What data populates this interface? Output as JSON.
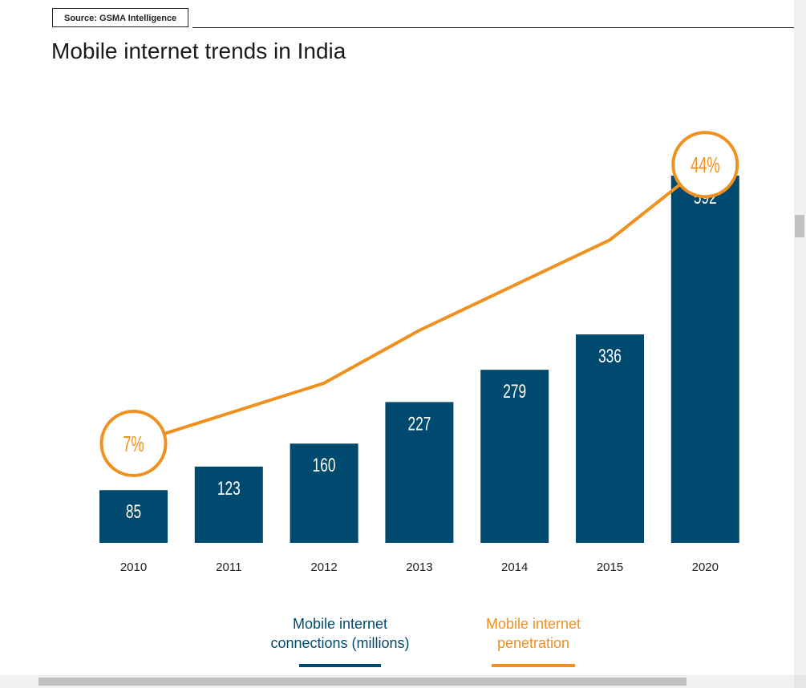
{
  "source": "Source: GSMA Intelligence",
  "title": "Mobile internet trends in India",
  "colors": {
    "bar": "#004a6f",
    "line": "#f0901e",
    "bar_label": "#ffffff",
    "axis_text": "#222222"
  },
  "chart_data": {
    "type": "bar",
    "title": "Mobile internet trends in India",
    "xlabel": "",
    "ylabel": "",
    "categories": [
      "2010",
      "2011",
      "2012",
      "2013",
      "2014",
      "2015",
      "2020"
    ],
    "series": [
      {
        "name": "Mobile internet connections (millions)",
        "type": "bar",
        "values": [
          85,
          123,
          160,
          227,
          279,
          336,
          592
        ]
      },
      {
        "name": "Mobile internet penetration",
        "type": "line",
        "values": [
          7,
          11,
          15,
          22,
          28,
          34,
          44
        ],
        "labels": [
          "7%",
          null,
          null,
          null,
          null,
          null,
          "44%"
        ]
      }
    ],
    "ylim": [
      0,
      600
    ],
    "grid": false,
    "legend": "bottom-center"
  },
  "legend": {
    "bars_label": "Mobile internet\nconnections (millions)",
    "line_label": "Mobile internet\npenetration"
  }
}
